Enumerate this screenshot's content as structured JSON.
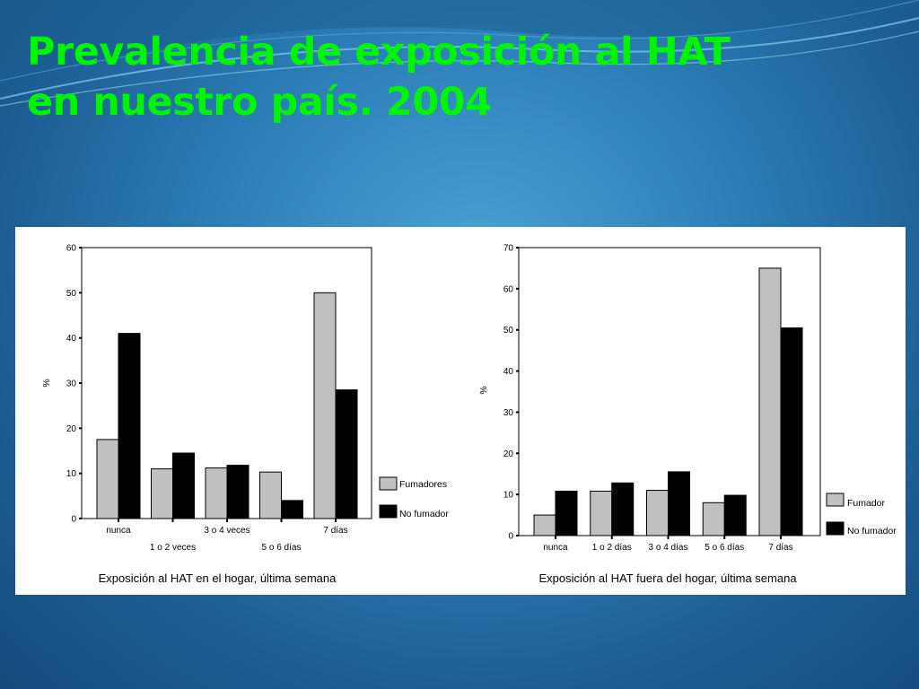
{
  "slide": {
    "title_line1": "Prevalencia de exposición al HAT",
    "title_line2": "en nuestro país. 2004",
    "colors": {
      "title": "#00f400",
      "series_1": "#c0c0c0",
      "series_2": "#000000"
    }
  },
  "chart_data": [
    {
      "type": "bar",
      "caption": "Exposición al HAT en el hogar, última semana",
      "ylabel": "%",
      "ylim": [
        0,
        60
      ],
      "yticks": [
        0,
        10,
        20,
        30,
        40,
        50,
        60
      ],
      "categories": [
        "nunca",
        "1 o 2 veces",
        "3 o 4 veces",
        "5 o 6 días",
        "7 días"
      ],
      "series": [
        {
          "name": "Fumadores",
          "color": "#c0c0c0",
          "values": [
            17.5,
            11,
            11.2,
            10.3,
            50
          ]
        },
        {
          "name": "No fumador",
          "color": "#000000",
          "values": [
            41,
            14.5,
            11.8,
            4,
            28.5
          ]
        }
      ],
      "legend_position": "bottom-right",
      "grid": false
    },
    {
      "type": "bar",
      "caption": "Exposición al HAT fuera del hogar, última semana",
      "ylabel": "%",
      "ylim": [
        0,
        70
      ],
      "yticks": [
        0,
        10,
        20,
        30,
        40,
        50,
        60,
        70
      ],
      "categories": [
        "nunca",
        "1 o 2 días",
        "3 o 4 días",
        "5 o 6 días",
        "7 días"
      ],
      "series": [
        {
          "name": "Fumador",
          "color": "#c0c0c0",
          "values": [
            5,
            10.8,
            11,
            8,
            65
          ]
        },
        {
          "name": "No fumador",
          "color": "#000000",
          "values": [
            10.8,
            12.8,
            15.5,
            9.8,
            50.5
          ]
        }
      ],
      "legend_position": "bottom-right",
      "grid": false
    }
  ]
}
